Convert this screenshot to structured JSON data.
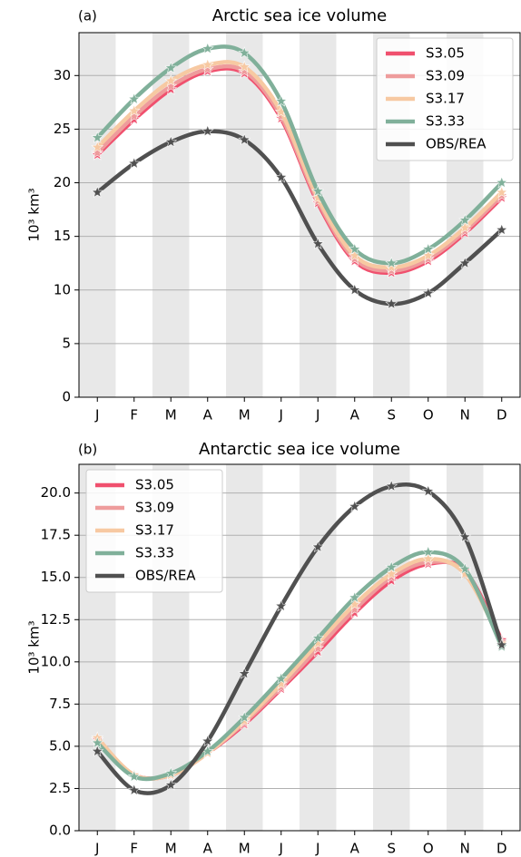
{
  "chart_data": [
    {
      "type": "line",
      "panel_label": "(a)",
      "title": "Arctic sea ice volume",
      "y_label": "10³ km³",
      "categories": [
        "J",
        "F",
        "M",
        "A",
        "M",
        "J",
        "J",
        "A",
        "S",
        "O",
        "N",
        "D"
      ],
      "series": [
        {
          "name": "S3.05",
          "color": "#f0506e",
          "values": [
            22.6,
            25.9,
            28.7,
            30.4,
            30.2,
            26.0,
            18.1,
            12.7,
            11.6,
            12.7,
            15.3,
            18.6
          ]
        },
        {
          "name": "S3.09",
          "color": "#ee9c9c",
          "values": [
            22.8,
            26.2,
            29.0,
            30.6,
            30.4,
            26.2,
            18.3,
            12.9,
            11.8,
            12.9,
            15.5,
            18.8
          ]
        },
        {
          "name": "S3.17",
          "color": "#f7c9a2",
          "values": [
            23.3,
            26.7,
            29.5,
            31.0,
            30.8,
            26.6,
            18.6,
            13.2,
            12.1,
            13.2,
            15.8,
            19.1
          ]
        },
        {
          "name": "S3.33",
          "color": "#80b09a",
          "values": [
            24.2,
            27.8,
            30.7,
            32.5,
            32.1,
            27.6,
            19.2,
            13.8,
            12.5,
            13.8,
            16.5,
            20.0
          ]
        },
        {
          "name": "OBS/REA",
          "color": "#505050",
          "values": [
            19.1,
            21.8,
            23.8,
            24.8,
            24.0,
            20.5,
            14.3,
            10.0,
            8.7,
            9.7,
            12.5,
            15.6
          ]
        }
      ],
      "ylim": [
        0,
        34
      ],
      "yticks": [
        0,
        5,
        10,
        15,
        20,
        25,
        30
      ],
      "grid": true,
      "legend": "upper right"
    },
    {
      "type": "line",
      "panel_label": "(b)",
      "title": "Antarctic sea ice volume",
      "y_label": "10³ km³",
      "categories": [
        "J",
        "F",
        "M",
        "A",
        "M",
        "J",
        "J",
        "A",
        "S",
        "O",
        "N",
        "D"
      ],
      "series": [
        {
          "name": "S3.05",
          "color": "#f0506e",
          "values": [
            5.4,
            3.3,
            3.3,
            4.6,
            6.3,
            8.4,
            10.6,
            12.9,
            14.8,
            15.8,
            15.4,
            11.3
          ]
        },
        {
          "name": "S3.09",
          "color": "#ee9c9c",
          "values": [
            5.4,
            3.3,
            3.3,
            4.6,
            6.4,
            8.5,
            10.8,
            13.1,
            15.0,
            15.9,
            15.3,
            11.2
          ]
        },
        {
          "name": "S3.17",
          "color": "#f7c9a2",
          "values": [
            5.5,
            3.3,
            3.3,
            4.6,
            6.5,
            8.7,
            11.1,
            13.4,
            15.2,
            16.1,
            15.2,
            11.1
          ]
        },
        {
          "name": "S3.33",
          "color": "#80b09a",
          "values": [
            5.2,
            3.2,
            3.4,
            4.7,
            6.7,
            9.0,
            11.4,
            13.8,
            15.6,
            16.5,
            15.5,
            10.9
          ]
        },
        {
          "name": "OBS/REA",
          "color": "#505050",
          "values": [
            4.7,
            2.4,
            2.7,
            5.3,
            9.3,
            13.3,
            16.8,
            19.2,
            20.4,
            20.1,
            17.4,
            11.0
          ]
        }
      ],
      "ylim": [
        0,
        21.7
      ],
      "yticks": [
        {
          "value": 0,
          "label": "0.0"
        },
        2.5,
        {
          "value": 5,
          "label": "5.0"
        },
        7.5,
        {
          "value": 10,
          "label": "10.0"
        },
        12.5,
        {
          "value": 15,
          "label": "15.0"
        },
        17.5,
        {
          "value": 20,
          "label": "20.0"
        }
      ],
      "grid": true,
      "legend": "upper left"
    }
  ]
}
